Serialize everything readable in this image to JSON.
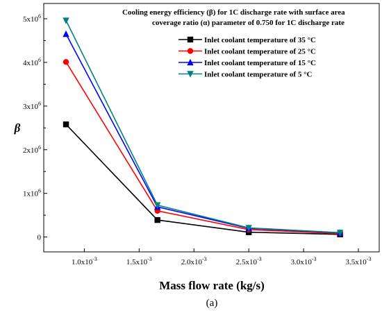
{
  "chart_data": {
    "type": "line",
    "title_lines": [
      "Cooling energy efficiency (β) for 1C discharge rate with surface area",
      "coverage ratio (α) parameter of 0.750 for 1C discharge rate"
    ],
    "xlabel": "Mass flow rate (kg/s)",
    "ylabel": "β",
    "panel_label": "(a)",
    "x": [
      0.000833,
      0.001667,
      0.0025,
      0.003333
    ],
    "xlim": [
      0.00063,
      0.00369
    ],
    "ylim": [
      -340000,
      5350000
    ],
    "x_ticks": [
      {
        "value": 0.001,
        "label": "1.0x10",
        "exp": "-3"
      },
      {
        "value": 0.0015,
        "label": "1.5x10",
        "exp": "-3"
      },
      {
        "value": 0.002,
        "label": "2.0x10",
        "exp": "-3"
      },
      {
        "value": 0.0025,
        "label": "2.5x10",
        "exp": "-3"
      },
      {
        "value": 0.003,
        "label": "3.0x10",
        "exp": "-3"
      },
      {
        "value": 0.0035,
        "label": "3.5x10",
        "exp": "-3"
      }
    ],
    "y_ticks": [
      {
        "value": 0,
        "label": "0",
        "exp": ""
      },
      {
        "value": 1000000,
        "label": "1x10",
        "exp": "6"
      },
      {
        "value": 2000000,
        "label": "2x10",
        "exp": "6"
      },
      {
        "value": 3000000,
        "label": "3x10",
        "exp": "6"
      },
      {
        "value": 4000000,
        "label": "4x10",
        "exp": "6"
      },
      {
        "value": 5000000,
        "label": "5x10",
        "exp": "6"
      }
    ],
    "legend_position": "top-right",
    "series": [
      {
        "name": "Inlet coolant temperature of 35 °C",
        "color": "#000000",
        "marker": "square",
        "values": [
          2580000,
          390000,
          110000,
          60000
        ]
      },
      {
        "name": "Inlet coolant temperature of 25 °C",
        "color": "#ff0000",
        "marker": "circle",
        "values": [
          4010000,
          600000,
          170000,
          80000
        ]
      },
      {
        "name": "Inlet coolant temperature of 15 °C",
        "color": "#0000ff",
        "marker": "triangle-up",
        "values": [
          4650000,
          690000,
          200000,
          95000
        ]
      },
      {
        "name": "Inlet coolant temperature of 5 °C",
        "color": "#008080",
        "marker": "triangle-down",
        "values": [
          4960000,
          730000,
          210000,
          100000
        ]
      }
    ]
  }
}
